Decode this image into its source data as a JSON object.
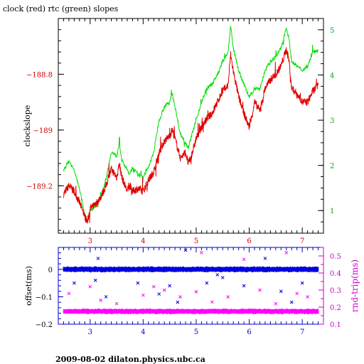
{
  "title": "clock (red) rtc (green) slopes",
  "footer": "2009-08-02  dilaton.physics.ubc.ca",
  "colors": {
    "clock": "#e00000",
    "rtc": "#00dd00",
    "offset": "#0000dd",
    "roundtrip": "#ff00ff",
    "left_axis_top": "#d00000",
    "right_axis_top": "#00aa00",
    "left_axis_bottom": "#0000cc",
    "right_axis_bottom": "#cc00cc"
  },
  "chart_data": [
    {
      "type": "line",
      "title": "clock (red) rtc (green) slopes",
      "xlabel": "",
      "ylabel": "clockslope",
      "xlim": [
        2.4,
        7.4
      ],
      "ylim_left": [
        -189.37,
        -188.6
      ],
      "ylim_right": [
        0.5,
        5.25
      ],
      "x_ticks": [
        "3",
        "4",
        "5",
        "6",
        "7"
      ],
      "y_ticks_left": [
        "-188.8",
        "-189",
        "-189.2"
      ],
      "y_ticks_right": [
        "1",
        "2",
        "3",
        "4",
        "5"
      ],
      "grid": false,
      "series": [
        {
          "name": "clock",
          "axis": "left",
          "x": [
            2.5,
            2.6,
            2.7,
            2.8,
            2.9,
            2.95,
            3.0,
            3.1,
            3.2,
            3.3,
            3.4,
            3.5,
            3.55,
            3.6,
            3.7,
            3.75,
            3.8,
            3.9,
            4.0,
            4.1,
            4.2,
            4.3,
            4.4,
            4.5,
            4.55,
            4.6,
            4.7,
            4.8,
            4.85,
            4.9,
            5.0,
            5.1,
            5.2,
            5.3,
            5.4,
            5.5,
            5.6,
            5.65,
            5.7,
            5.8,
            5.9,
            6.0,
            6.05,
            6.1,
            6.2,
            6.3,
            6.4,
            6.5,
            6.6,
            6.7,
            6.75,
            6.8,
            6.9,
            7.0,
            7.1,
            7.2,
            7.3
          ],
          "values": [
            -189.23,
            -189.2,
            -189.22,
            -189.26,
            -189.31,
            -189.33,
            -189.28,
            -189.27,
            -189.24,
            -189.2,
            -189.14,
            -189.17,
            -189.12,
            -189.17,
            -189.22,
            -189.2,
            -189.22,
            -189.21,
            -189.22,
            -189.18,
            -189.15,
            -189.08,
            -189.04,
            -189.02,
            -189.0,
            -189.03,
            -189.1,
            -189.08,
            -189.12,
            -189.1,
            -189.03,
            -188.99,
            -188.96,
            -188.94,
            -188.9,
            -188.86,
            -188.84,
            -188.73,
            -188.79,
            -188.88,
            -188.94,
            -188.99,
            -188.95,
            -188.9,
            -188.93,
            -188.85,
            -188.82,
            -188.8,
            -188.77,
            -188.71,
            -188.75,
            -188.85,
            -188.87,
            -188.9,
            -188.9,
            -188.86,
            -188.84
          ]
        },
        {
          "name": "rtc",
          "axis": "right",
          "x": [
            2.5,
            2.6,
            2.7,
            2.8,
            2.9,
            2.95,
            3.0,
            3.1,
            3.2,
            3.3,
            3.4,
            3.5,
            3.55,
            3.6,
            3.7,
            3.75,
            3.8,
            3.9,
            4.0,
            4.1,
            4.2,
            4.3,
            4.4,
            4.5,
            4.55,
            4.6,
            4.7,
            4.8,
            4.85,
            4.9,
            5.0,
            5.1,
            5.2,
            5.3,
            5.4,
            5.5,
            5.6,
            5.65,
            5.7,
            5.8,
            5.9,
            6.0,
            6.05,
            6.1,
            6.2,
            6.3,
            6.4,
            6.5,
            6.6,
            6.7,
            6.75,
            6.8,
            6.9,
            7.0,
            7.1,
            7.2,
            7.3
          ],
          "values": [
            1.9,
            2.1,
            1.9,
            1.5,
            0.9,
            0.75,
            1.0,
            1.1,
            1.3,
            1.7,
            2.3,
            2.2,
            2.5,
            2.1,
            1.9,
            1.8,
            1.95,
            1.8,
            1.75,
            1.95,
            2.3,
            3.0,
            3.3,
            3.4,
            3.6,
            3.3,
            2.7,
            2.5,
            2.4,
            2.6,
            3.0,
            3.4,
            3.7,
            3.8,
            4.0,
            4.3,
            4.5,
            5.1,
            4.6,
            4.1,
            3.8,
            3.5,
            3.6,
            3.7,
            3.7,
            4.1,
            4.3,
            4.4,
            4.6,
            5.05,
            4.8,
            4.3,
            4.2,
            4.1,
            4.2,
            4.5,
            4.55
          ]
        }
      ]
    },
    {
      "type": "scatter",
      "title": "",
      "xlabel": "",
      "ylabel_left": "offset(ms)",
      "ylabel_right": "rnd-trip(ms)",
      "xlim": [
        2.4,
        7.4
      ],
      "ylim_left": [
        -0.2,
        0.08
      ],
      "ylim_right": [
        0.1,
        0.55
      ],
      "x_ticks": [
        "3",
        "4",
        "5",
        "6",
        "7"
      ],
      "y_ticks_left": [
        "0",
        "-0.1",
        "-0.2"
      ],
      "y_ticks_right": [
        "0.1",
        "0.2",
        "0.3",
        "0.4",
        "0.5"
      ],
      "grid": false,
      "series": [
        {
          "name": "offset",
          "axis": "left",
          "band_x": [
            2.5,
            7.3
          ],
          "band_center": 0.0,
          "band_halfwidth": 0.008,
          "outliers_x": [
            2.7,
            3.1,
            3.3,
            3.9,
            4.3,
            4.5,
            4.8,
            4.65,
            5.4,
            5.5,
            5.9,
            6.3,
            6.6,
            6.8,
            7.0,
            3.15,
            5.2
          ],
          "outliers_y": [
            -0.05,
            -0.04,
            -0.1,
            -0.05,
            -0.09,
            -0.06,
            0.07,
            -0.12,
            -0.02,
            -0.03,
            -0.06,
            0.04,
            -0.08,
            -0.12,
            -0.05,
            0.04,
            -0.05
          ]
        },
        {
          "name": "rnd-trip",
          "axis": "right",
          "band_x": [
            2.5,
            7.3
          ],
          "band_center": 0.175,
          "band_halfwidth": 0.012,
          "outliers_x": [
            2.6,
            3.0,
            3.2,
            3.5,
            4.0,
            4.4,
            4.7,
            5.1,
            5.3,
            5.6,
            5.9,
            6.2,
            6.5,
            6.7,
            6.9,
            7.1,
            4.2,
            5.0
          ],
          "outliers_y": [
            0.28,
            0.32,
            0.24,
            0.22,
            0.27,
            0.3,
            0.26,
            0.52,
            0.23,
            0.26,
            0.48,
            0.3,
            0.22,
            0.52,
            0.28,
            0.26,
            0.32,
            0.29
          ]
        }
      ]
    }
  ]
}
